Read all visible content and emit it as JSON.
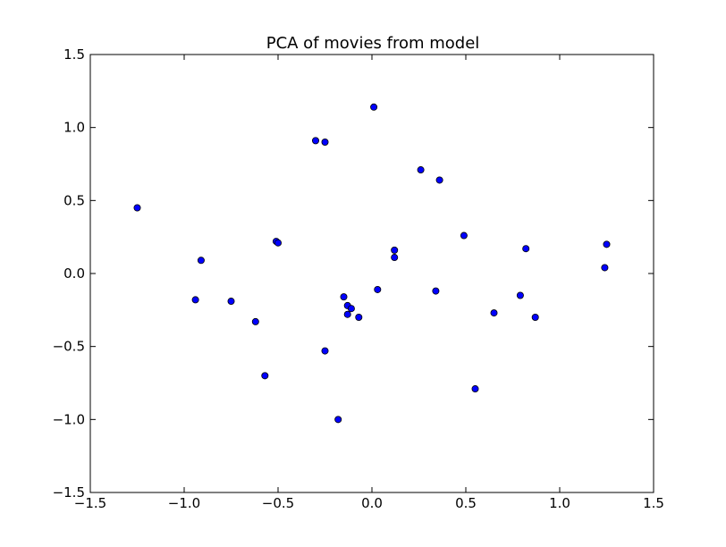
{
  "chart_data": {
    "type": "scatter",
    "title": "PCA of movies from model",
    "xlabel": "",
    "ylabel": "",
    "xlim": [
      -1.5,
      1.5
    ],
    "ylim": [
      -1.5,
      1.5
    ],
    "xticks": [
      -1.5,
      -1.0,
      -0.5,
      0.0,
      0.5,
      1.0,
      1.5
    ],
    "yticks": [
      -1.5,
      -1.0,
      -0.5,
      0.0,
      0.5,
      1.0,
      1.5
    ],
    "xtick_labels": [
      "−1.5",
      "−1.0",
      "−0.5",
      "0.0",
      "0.5",
      "1.0",
      "1.5"
    ],
    "ytick_labels": [
      "−1.5",
      "−1.0",
      "−0.5",
      "0.0",
      "0.5",
      "1.0",
      "1.5"
    ],
    "grid": false,
    "marker_color": "#0000ff",
    "marker_edge_color": "#000000",
    "points": [
      {
        "x": -1.25,
        "y": 0.45
      },
      {
        "x": -0.94,
        "y": -0.18
      },
      {
        "x": -0.91,
        "y": 0.09
      },
      {
        "x": -0.75,
        "y": -0.19
      },
      {
        "x": -0.62,
        "y": -0.33
      },
      {
        "x": -0.57,
        "y": -0.7
      },
      {
        "x": -0.51,
        "y": 0.22
      },
      {
        "x": -0.5,
        "y": 0.21
      },
      {
        "x": -0.3,
        "y": 0.91
      },
      {
        "x": -0.25,
        "y": 0.9
      },
      {
        "x": -0.25,
        "y": -0.53
      },
      {
        "x": -0.18,
        "y": -1.0
      },
      {
        "x": -0.15,
        "y": -0.16
      },
      {
        "x": -0.13,
        "y": -0.22
      },
      {
        "x": -0.13,
        "y": -0.28
      },
      {
        "x": -0.11,
        "y": -0.24
      },
      {
        "x": -0.07,
        "y": -0.3
      },
      {
        "x": 0.01,
        "y": 1.14
      },
      {
        "x": 0.03,
        "y": -0.11
      },
      {
        "x": 0.12,
        "y": 0.16
      },
      {
        "x": 0.12,
        "y": 0.11
      },
      {
        "x": 0.26,
        "y": 0.71
      },
      {
        "x": 0.34,
        "y": -0.12
      },
      {
        "x": 0.36,
        "y": 0.64
      },
      {
        "x": 0.49,
        "y": 0.26
      },
      {
        "x": 0.55,
        "y": -0.79
      },
      {
        "x": 0.65,
        "y": -0.27
      },
      {
        "x": 0.79,
        "y": -0.15
      },
      {
        "x": 0.82,
        "y": 0.17
      },
      {
        "x": 0.87,
        "y": -0.3
      },
      {
        "x": 1.24,
        "y": 0.04
      },
      {
        "x": 1.25,
        "y": 0.2
      }
    ]
  }
}
